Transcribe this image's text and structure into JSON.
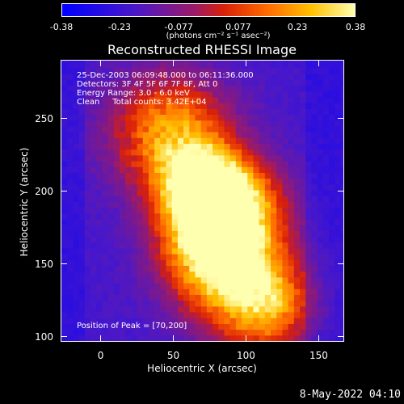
{
  "colorbar": {
    "ticks": [
      "-0.38",
      "-0.23",
      "-0.077",
      "0.077",
      "0.23",
      "0.38"
    ],
    "tick_values": [
      -0.38,
      -0.23,
      -0.077,
      0.077,
      0.23,
      0.38
    ],
    "unit_label": "(photons cm⁻² s⁻¹ asec⁻²)",
    "min": -0.38,
    "max": 0.38
  },
  "chart_data": {
    "type": "heatmap",
    "title": "Reconstructed RHESSI Image",
    "xlabel": "Heliocentric X (arcsec)",
    "ylabel": "Heliocentric Y (arcsec)",
    "xlim": [
      -27,
      167
    ],
    "ylim": [
      97,
      290
    ],
    "xticks": [
      "0",
      "50",
      "100",
      "150"
    ],
    "xtick_values": [
      0,
      50,
      100,
      150
    ],
    "yticks": [
      "100",
      "150",
      "200",
      "250"
    ],
    "ytick_values": [
      100,
      150,
      200,
      250
    ],
    "peak_position": [
      70,
      200
    ],
    "sources": [
      {
        "x": 70,
        "y": 202,
        "sigma": 20,
        "amp": 0.38
      },
      {
        "x": 48,
        "y": 240,
        "sigma": 28,
        "amp": 0.22
      },
      {
        "x": 75,
        "y": 165,
        "sigma": 24,
        "amp": 0.26
      },
      {
        "x": 95,
        "y": 190,
        "sigma": 22,
        "amp": 0.2
      },
      {
        "x": 95,
        "y": 140,
        "sigma": 28,
        "amp": 0.15
      },
      {
        "x": 115,
        "y": 120,
        "sigma": 22,
        "amp": 0.1
      }
    ]
  },
  "annotations": {
    "line1": "25-Dec-2003 06:09:48.000 to 06:11:36.000",
    "line2": "Detectors: 3F 4F 5F 6F 7F 8F, Att 0",
    "line3": "Energy Range: 3.0 - 6.0 keV",
    "line4": "Clean     Total counts: 3.42E+04",
    "peak": "Position of Peak = [70,200]"
  },
  "footer": "8-May-2022 04:10"
}
